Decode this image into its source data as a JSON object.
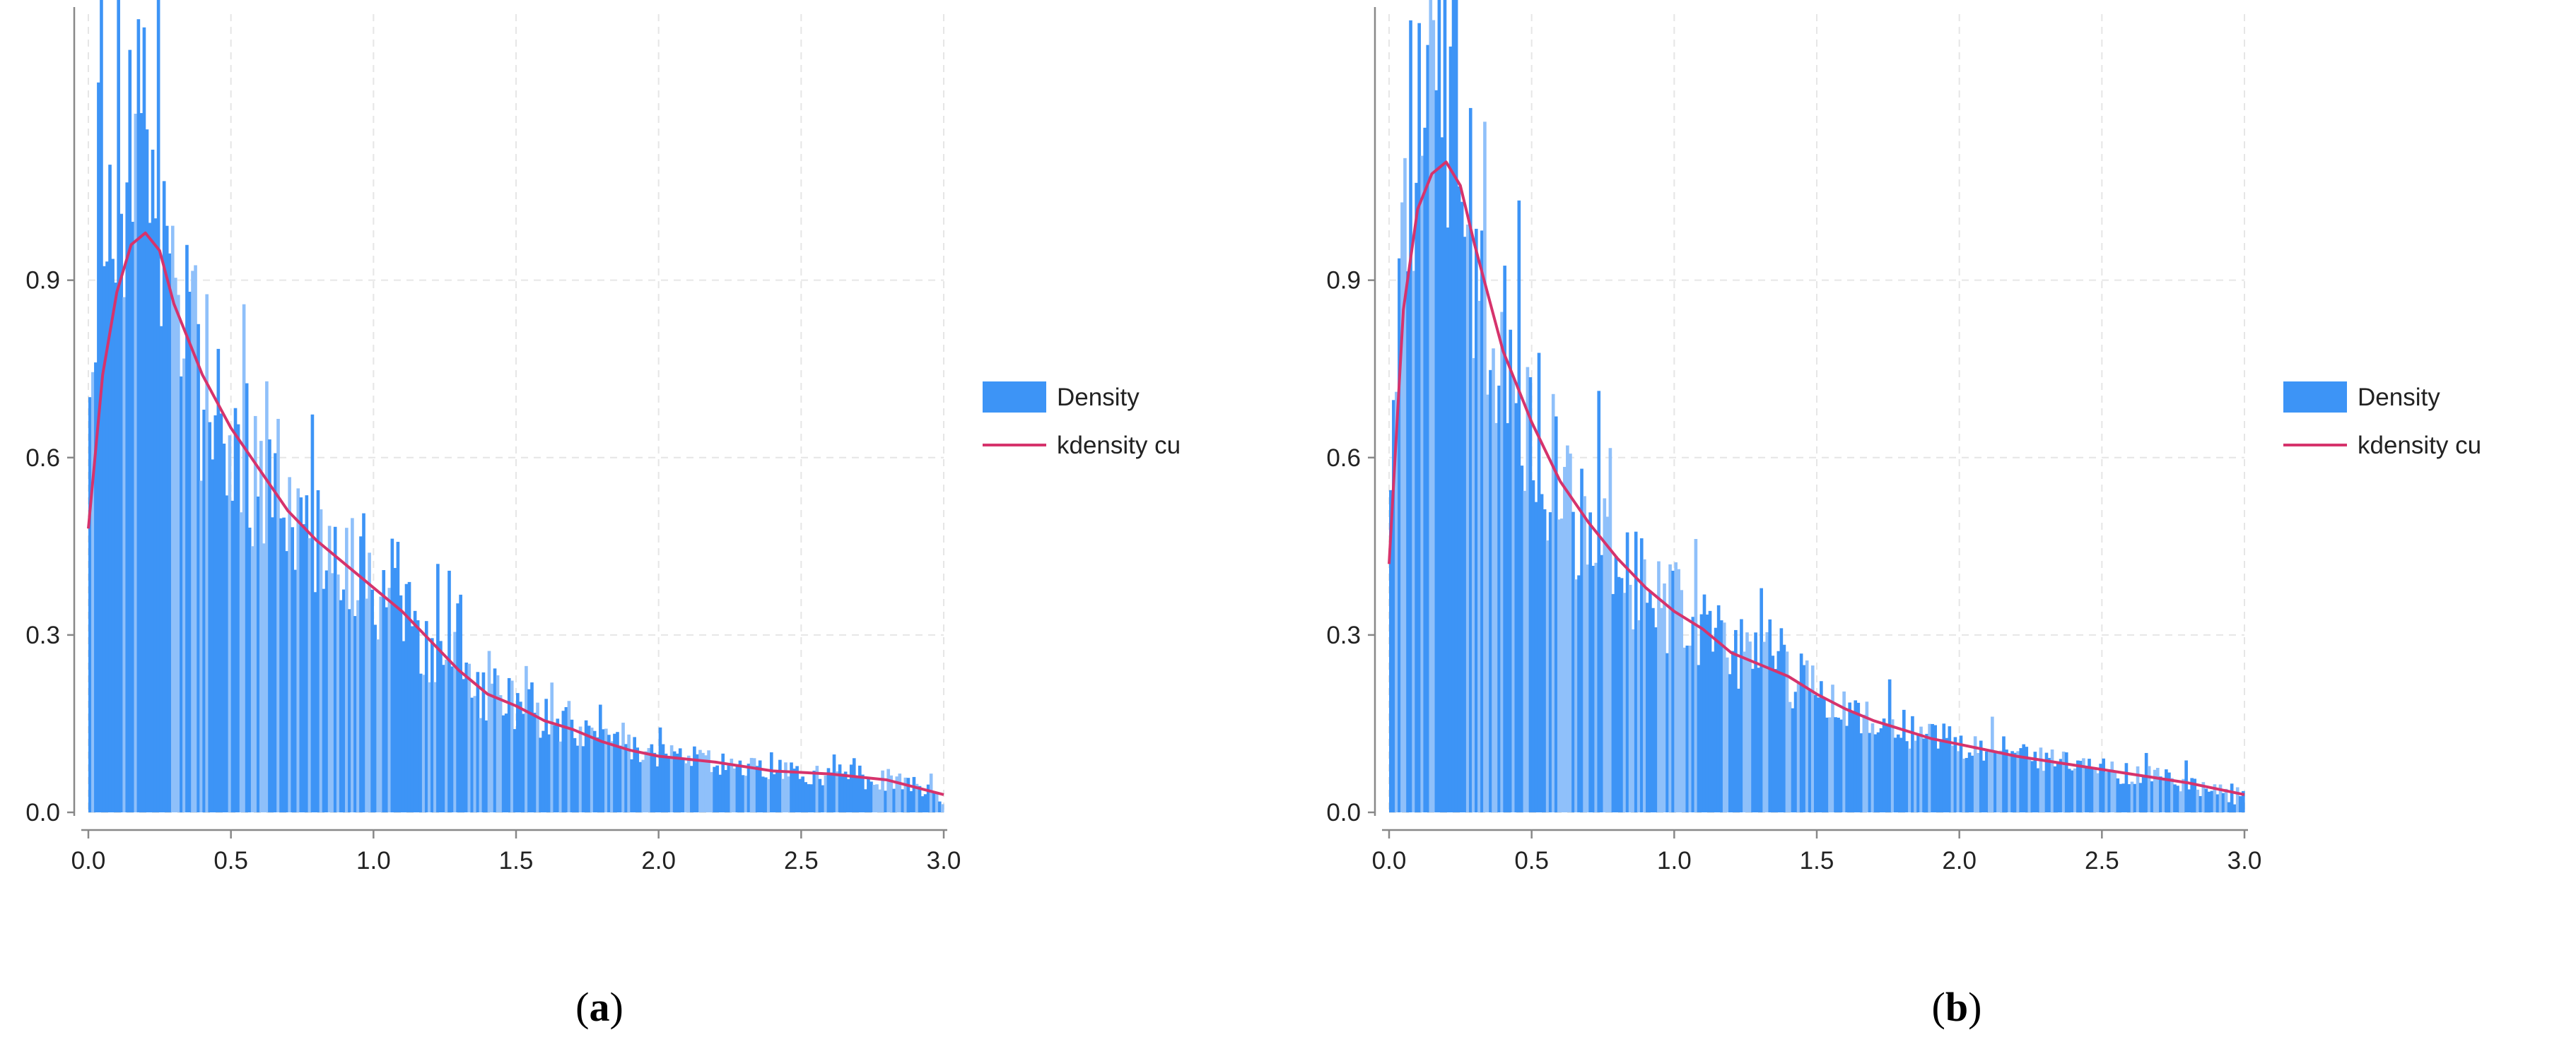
{
  "colors": {
    "bar": "#3d94f6",
    "bar_light": "#8fc0fa",
    "kde": "#d6336c",
    "grid": "#e6e6e6",
    "axis": "#888888"
  },
  "panels": [
    {
      "caption": "a"
    },
    {
      "caption": "b"
    }
  ],
  "chart_data": [
    {
      "type": "bar",
      "subtype": "histogram-with-kde",
      "title": "",
      "xlabel": "",
      "ylabel": "",
      "xlim": [
        0,
        3.0
      ],
      "ylim": [
        0,
        1.35
      ],
      "x_ticks": [
        "0.0",
        "0.5",
        "1.0",
        "1.5",
        "2.0",
        "2.5",
        "3.0"
      ],
      "y_ticks": [
        "0.0",
        "0.3",
        "0.6",
        "0.9"
      ],
      "grid": true,
      "legend_position": "right",
      "series": [
        {
          "name": "Density",
          "kind": "histogram"
        },
        {
          "name": "kdensity cu",
          "kind": "line",
          "x": [
            0.0,
            0.05,
            0.1,
            0.15,
            0.2,
            0.25,
            0.3,
            0.4,
            0.5,
            0.6,
            0.7,
            0.8,
            0.9,
            1.0,
            1.1,
            1.2,
            1.3,
            1.4,
            1.5,
            1.6,
            1.7,
            1.8,
            1.9,
            2.0,
            2.2,
            2.4,
            2.6,
            2.8,
            3.0
          ],
          "y": [
            0.48,
            0.74,
            0.88,
            0.96,
            0.98,
            0.95,
            0.86,
            0.74,
            0.65,
            0.58,
            0.51,
            0.46,
            0.42,
            0.38,
            0.34,
            0.29,
            0.24,
            0.2,
            0.18,
            0.155,
            0.14,
            0.12,
            0.105,
            0.095,
            0.085,
            0.07,
            0.065,
            0.055,
            0.03
          ]
        }
      ]
    },
    {
      "type": "bar",
      "subtype": "histogram-with-kde",
      "title": "",
      "xlabel": "",
      "ylabel": "",
      "xlim": [
        0,
        3.0
      ],
      "ylim": [
        0,
        1.35
      ],
      "x_ticks": [
        "0.0",
        "0.5",
        "1.0",
        "1.5",
        "2.0",
        "2.5",
        "3.0"
      ],
      "y_ticks": [
        "0.0",
        "0.3",
        "0.6",
        "0.9"
      ],
      "grid": true,
      "legend_position": "right",
      "series": [
        {
          "name": "Density",
          "kind": "histogram"
        },
        {
          "name": "kdensity cu",
          "kind": "line",
          "x": [
            0.0,
            0.05,
            0.1,
            0.15,
            0.2,
            0.25,
            0.3,
            0.4,
            0.5,
            0.6,
            0.7,
            0.8,
            0.9,
            1.0,
            1.1,
            1.2,
            1.3,
            1.4,
            1.5,
            1.6,
            1.7,
            1.8,
            1.9,
            2.0,
            2.2,
            2.4,
            2.6,
            2.8,
            3.0
          ],
          "y": [
            0.42,
            0.85,
            1.02,
            1.08,
            1.1,
            1.06,
            0.96,
            0.78,
            0.66,
            0.56,
            0.49,
            0.43,
            0.38,
            0.34,
            0.31,
            0.27,
            0.25,
            0.23,
            0.2,
            0.175,
            0.155,
            0.14,
            0.125,
            0.115,
            0.095,
            0.08,
            0.065,
            0.05,
            0.03
          ]
        }
      ]
    }
  ]
}
